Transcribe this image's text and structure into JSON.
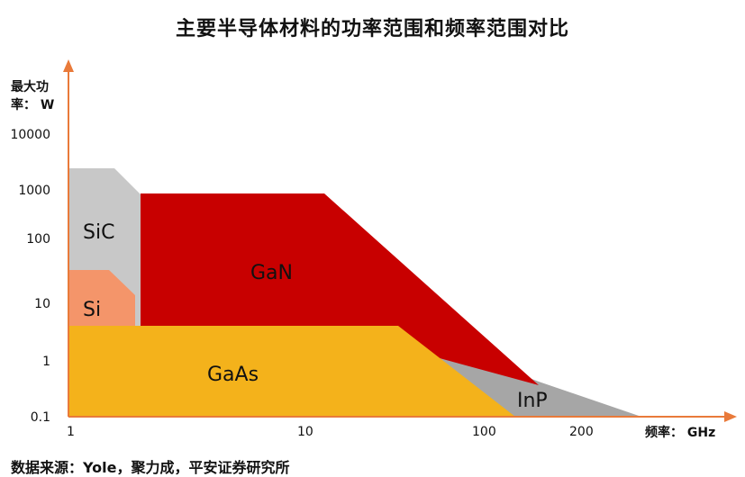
{
  "chart_data": {
    "type": "area",
    "title": "主要半导体材料的功率范围和频率范围对比",
    "ylabel_line1": "最大功",
    "ylabel_line2": "率： W",
    "xlabel": "频率： GHz",
    "y_ticks": [
      "10000",
      "1000",
      "100",
      "10",
      "1",
      "0.1"
    ],
    "x_ticks": [
      "1",
      "10",
      "100",
      "200"
    ],
    "y_scale": "log",
    "x_scale": "log",
    "regions": [
      {
        "name": "SiC",
        "color": "#c8c8c8"
      },
      {
        "name": "Si",
        "color": "#f4956a"
      },
      {
        "name": "GaN",
        "color": "#c80000"
      },
      {
        "name": "GaAs",
        "color": "#f4b21b"
      },
      {
        "name": "InP",
        "color": "#a6a6a6"
      }
    ],
    "source": "数据来源：Yole，聚力成，平安证券研究所"
  }
}
